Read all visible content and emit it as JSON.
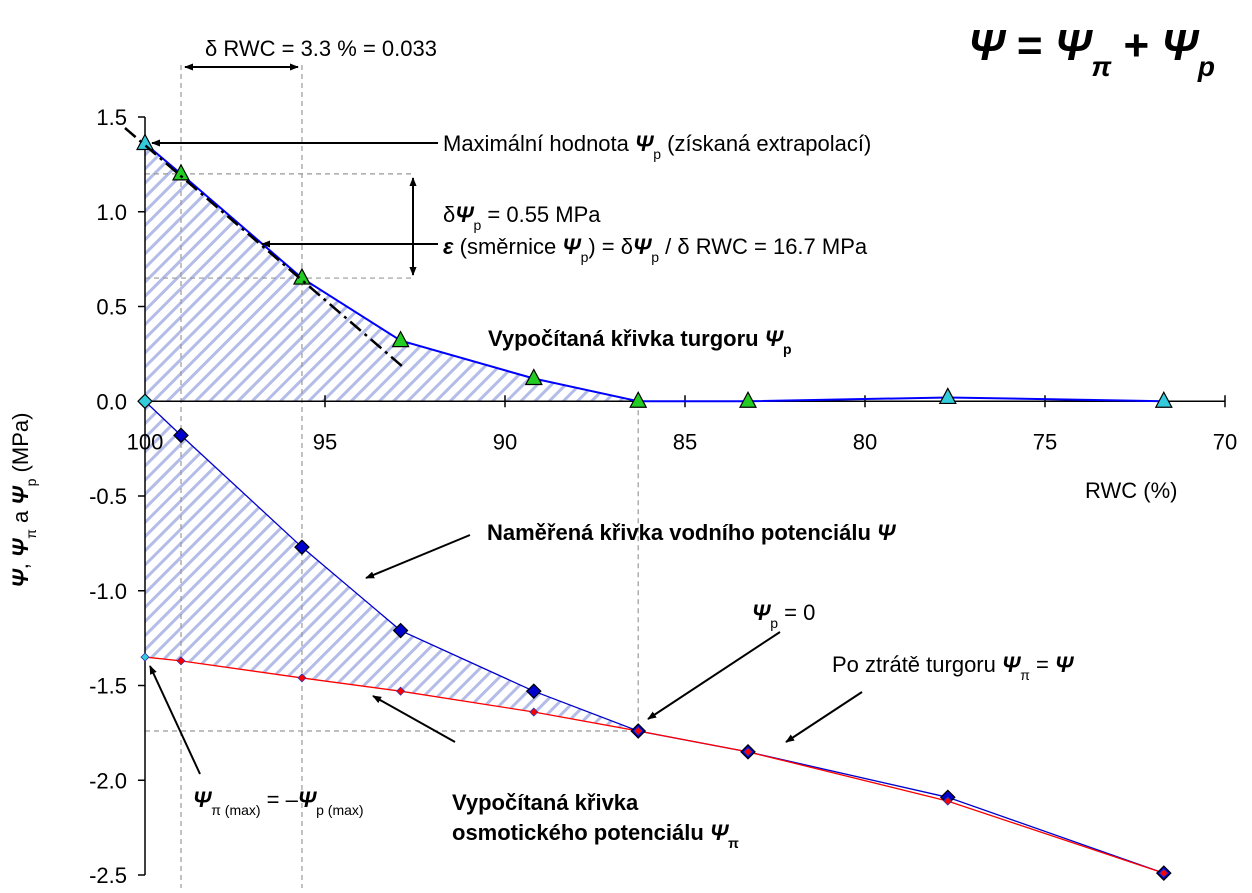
{
  "chart_data": {
    "type": "line",
    "x": [
      100,
      99.0,
      95.64,
      92.9,
      89.2,
      86.3,
      83.25,
      77.7,
      71.7
    ],
    "series": [
      {
        "color": "#0000ff",
        "marker": "triangle",
        "marker_colors": [
          "#33ccdd",
          "#22cc22",
          "#22cc22",
          "#22cc22",
          "#22cc22",
          "#22cc22",
          "#22cc22",
          "#33ccdd",
          "#33ccdd"
        ],
        "values": [
          1.36,
          1.2,
          0.65,
          0.32,
          0.12,
          0.0,
          0.0,
          0.02,
          0.0
        ]
      },
      {
        "color": "#0000cc",
        "marker": "diamond",
        "marker_colors": [
          "#33ccdd",
          "#0000cc",
          "#0000cc",
          "#0000cc",
          "#0000cc",
          "#0000cc",
          "#0000cc",
          "#0000cc",
          "#0000cc"
        ],
        "values": [
          0.0,
          -0.18,
          -0.77,
          -1.21,
          -1.53,
          -1.74,
          -1.85,
          -2.09,
          -2.49
        ]
      },
      {
        "color": "#ff0000",
        "marker": "small-diamond",
        "marker_colors": [
          "#33ccdd",
          "#ff0000",
          "#ff0000",
          "#ff0000",
          "#ff0000",
          "#ff0000",
          "#ff0000",
          "#ff0000",
          "#ff0000"
        ],
        "values": [
          -1.35,
          -1.37,
          -1.46,
          -1.53,
          -1.64,
          -1.74,
          -1.85,
          -2.11,
          -2.49
        ]
      }
    ],
    "xlim": [
      100,
      70
    ],
    "xticks": [
      100,
      95,
      90,
      85,
      80,
      75,
      70
    ],
    "ylim": [
      -2.5,
      1.5
    ],
    "yticks": [
      -2.5,
      {
        "value": -2,
        "label": "-2.0"
      },
      -1.5,
      {
        "value": -1,
        "label": "-1.0"
      },
      -0.5,
      {
        "value": 0,
        "label": "0.0"
      },
      0.5,
      {
        "value": 1,
        "label": "1.0"
      },
      1.5
    ],
    "xlabel": "RWC (%)",
    "ylabel": [
      "Ψ",
      ", ",
      "Ψ",
      "π",
      " a ",
      "Ψ",
      "p",
      " (MPa)"
    ],
    "annotations": {
      "formula": [
        "Ψ",
        " = ",
        "Ψ",
        "π",
        " + ",
        "Ψ",
        "p"
      ],
      "delta_rwc": "δ RWC = 3.3 % = 0.033",
      "max_psi_p": [
        "Maximální hodnota ",
        "Ψ",
        "p",
        " (získaná extrapolací)"
      ],
      "delta_psi_p": [
        "δ",
        "Ψ",
        "p",
        " = 0.55 MPa"
      ],
      "epsilon": [
        "ε",
        " (směrnice ",
        "Ψ",
        "p",
        ") = δ",
        "Ψ",
        "p",
        " / δ RWC = 16.7 MPa"
      ],
      "turgor_curve": [
        "Vypočítaná křivka turgoru ",
        "Ψ",
        "p"
      ],
      "measured_curve": [
        "Naměřená křivka vodního potenciálu ",
        "Ψ"
      ],
      "psi_p_zero": [
        "Ψ",
        "p",
        " = 0"
      ],
      "after_loss": [
        "Po ztrátě turgoru ",
        "Ψ",
        "π",
        " = ",
        "Ψ"
      ],
      "psi_pi_max": [
        "Ψ",
        "π (max)",
        " = –",
        "Ψ",
        "p (max)"
      ],
      "osmotic_curve_1": "Vypočítaná křivka",
      "osmotic_curve_2": [
        "osmotického potenciálu ",
        "Ψ",
        "π"
      ]
    }
  }
}
